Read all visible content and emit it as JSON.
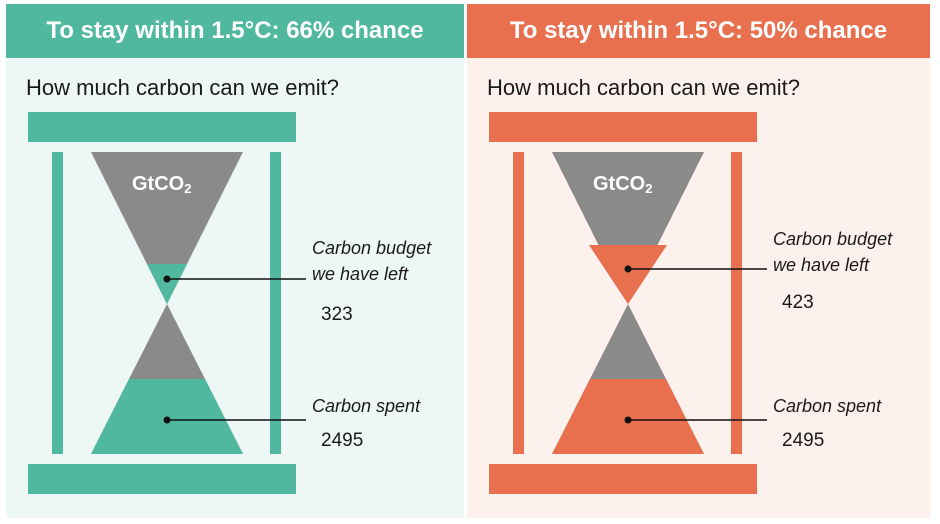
{
  "colors": {
    "teal": "#4fb89f",
    "teal_bg": "#edf7f5",
    "orange": "#e8704e",
    "orange_bg": "#fdf1ee",
    "grey": "#8a8a8a"
  },
  "panels": [
    {
      "title": "To stay within 1.5°C: 66% chance",
      "question": "How much carbon can we emit?",
      "unit_main": "GtCO",
      "unit_sub": "2",
      "budget_label_line1": "Carbon budget",
      "budget_label_line2": "we have left",
      "budget_value": "323",
      "spent_label": "Carbon spent",
      "spent_value": "2495",
      "budget_gt": 323,
      "spent_gt": 2495
    },
    {
      "title": "To stay within 1.5°C: 50% chance",
      "question": "How much carbon can we emit?",
      "unit_main": "GtCO",
      "unit_sub": "2",
      "budget_label_line1": "Carbon budget",
      "budget_label_line2": "we have left",
      "budget_value": "423",
      "spent_label": "Carbon spent",
      "spent_value": "2495",
      "budget_gt": 423,
      "spent_gt": 2495
    }
  ]
}
